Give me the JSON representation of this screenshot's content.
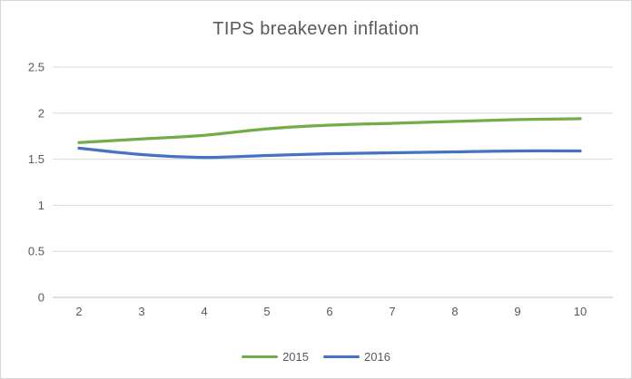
{
  "chart_data": {
    "type": "line",
    "title": "TIPS breakeven inflation",
    "x": [
      2,
      3,
      4,
      5,
      6,
      7,
      8,
      9,
      10
    ],
    "x_tick_labels": [
      "2",
      "3",
      "4",
      "5",
      "6",
      "7",
      "8",
      "9",
      "10"
    ],
    "y_tick_values": [
      0,
      0.5,
      1,
      1.5,
      2,
      2.5
    ],
    "y_tick_labels": [
      "0",
      "0.5",
      "1",
      "1.5",
      "2",
      "2.5"
    ],
    "ylim": [
      0,
      2.5
    ],
    "grid": "horizontal",
    "smooth_lines": true,
    "legend_position": "bottom-center",
    "series": [
      {
        "name": "2015",
        "color": "#70AD47",
        "values": [
          1.68,
          1.72,
          1.76,
          1.83,
          1.87,
          1.89,
          1.91,
          1.93,
          1.94
        ]
      },
      {
        "name": "2016",
        "color": "#4472C4",
        "values": [
          1.62,
          1.55,
          1.52,
          1.54,
          1.56,
          1.57,
          1.58,
          1.59,
          1.59
        ]
      }
    ]
  },
  "styles": {
    "background": "#FFFFFF",
    "border_color": "#D7D7D7",
    "gridline_color": "#D9D9D9",
    "axis_line_color": "#BFBFBF",
    "title_color": "#595959",
    "tick_label_color": "#595959"
  }
}
